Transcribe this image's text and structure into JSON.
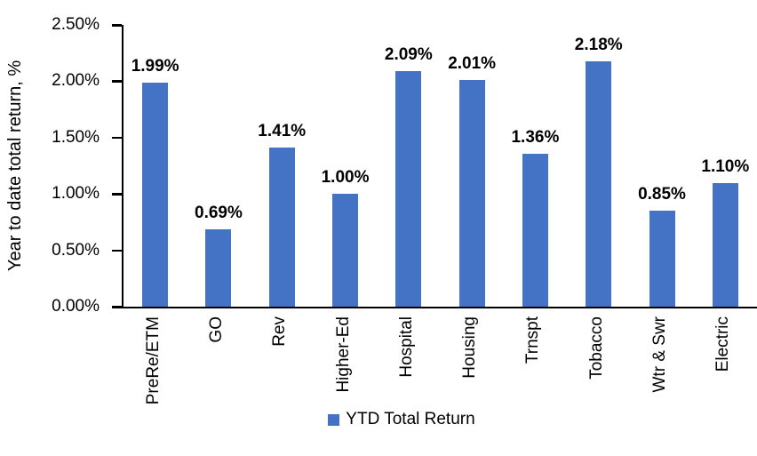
{
  "chart_data": {
    "type": "bar",
    "title": "",
    "ylabel": "Year to date total return, %",
    "xlabel": "",
    "categories": [
      "PreRe/ETM",
      "GO",
      "Rev",
      "Higher-Ed",
      "Hospital",
      "Housing",
      "Trnspt",
      "Tobacco",
      "Wtr & Swr",
      "Electric"
    ],
    "values": [
      1.99,
      0.69,
      1.41,
      1.0,
      2.09,
      2.01,
      1.36,
      2.18,
      0.85,
      1.1
    ],
    "value_labels": [
      "1.99%",
      "0.69%",
      "1.41%",
      "1.00%",
      "2.09%",
      "2.01%",
      "1.36%",
      "2.18%",
      "0.85%",
      "1.10%"
    ],
    "y_ticks": [
      "2.50%",
      "2.00%",
      "1.50%",
      "1.00%",
      "0.50%",
      "0.00%"
    ],
    "ylim": [
      0,
      2.5
    ],
    "grid": false,
    "legend": "YTD Total Return",
    "legend_position": "bottom",
    "bar_color": "#4472C4",
    "axis_color": "#000000",
    "text_color": "#000000",
    "background_color": "#FFFFFF"
  }
}
